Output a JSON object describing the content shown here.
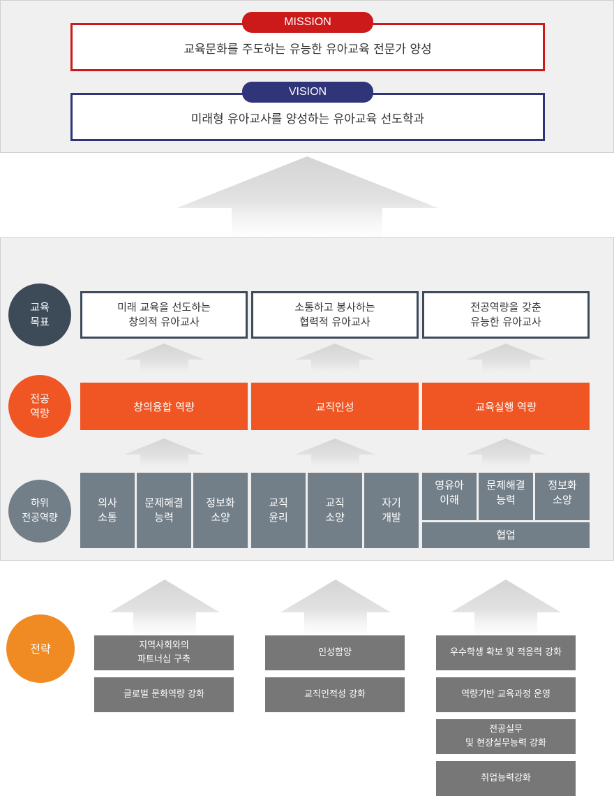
{
  "mission": {
    "label": "MISSION",
    "text": "교육문화를 주도하는 유능한 유아교육 전문가 양성",
    "color": "#cc1a1a"
  },
  "vision": {
    "label": "VISION",
    "text": "미래형 유아교사를 양성하는 유아교육 선도학과",
    "color": "#30357a"
  },
  "rows": {
    "goals": {
      "label": "교육\n목표",
      "items": [
        "미래 교육을 선도하는\n창의적 유아교사",
        "소통하고 봉사하는\n협력적 유아교사",
        "전공역량을 갖춘\n유능한 유아교사"
      ]
    },
    "competencies": {
      "label": "전공\n역량",
      "items": [
        "창의융합 역량",
        "교직인성",
        "교육실행 역량"
      ]
    },
    "sub_competencies": {
      "label": "하위\n전공역량",
      "groups": [
        [
          "의사\n소통",
          "문제해결\n능력",
          "정보화\n소양"
        ],
        [
          "교직\n윤리",
          "교직\n소양",
          "자기\n개발"
        ],
        [
          "영유아\n이해",
          "문제해결\n능력",
          "정보화\n소양"
        ]
      ],
      "shared": "협업"
    },
    "strategy": {
      "label": "전략",
      "groups": [
        [
          "지역사회와의\n파트너십 구축",
          "글로벌 문화역량 강화"
        ],
        [
          "인성함양",
          "교직인적성 강화"
        ],
        [
          "우수학생 확보  및 적응력 강화",
          "역량기반 교육과정 운영",
          "전공실무\n및 현장실무능력 강화",
          "취업능력강화"
        ]
      ]
    }
  },
  "colors": {
    "goal_circle": "#3d4a58",
    "competency": "#f05623",
    "sub": "#737f88",
    "strategy_circle": "#ef8b22",
    "strategy_box": "#777777"
  }
}
